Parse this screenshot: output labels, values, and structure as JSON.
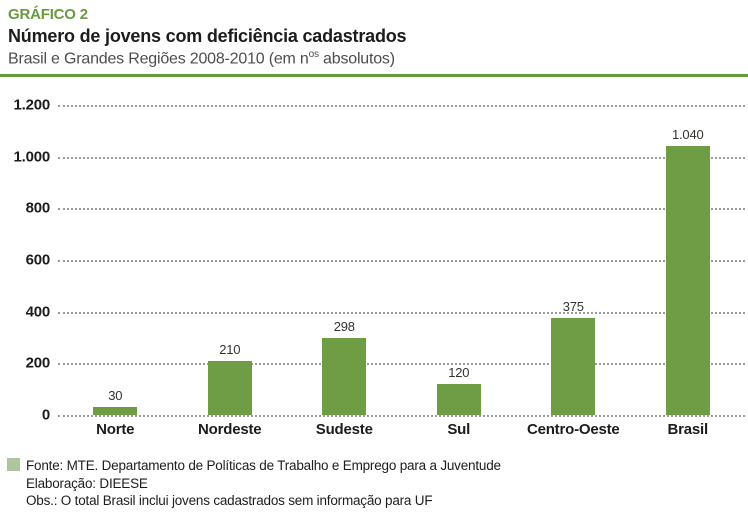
{
  "header": {
    "kicker": "GRÁFICO 2",
    "title": "Número de jovens com deficiência cadastrados",
    "subtitle_prefix": "Brasil e Grandes Regiões 2008-2010 (em n",
    "subtitle_sup": "os",
    "subtitle_suffix": " absolutos)"
  },
  "chart_data": {
    "type": "bar",
    "title": "Número de jovens com deficiência cadastrados",
    "subtitle": "Brasil e Grandes Regiões 2008-2010 (em nos absolutos)",
    "categories": [
      "Norte",
      "Nordeste",
      "Sudeste",
      "Sul",
      "Centro-Oeste",
      "Brasil"
    ],
    "values": [
      30,
      210,
      298,
      120,
      375,
      1040
    ],
    "value_labels": [
      "30",
      "210",
      "298",
      "120",
      "375",
      "1.040"
    ],
    "xlabel": "",
    "ylabel": "",
    "ylim": [
      0,
      1200
    ],
    "yticks": [
      1200,
      1000,
      800,
      600,
      400,
      200,
      0
    ],
    "ytick_labels": [
      "1.200",
      "1.000",
      "800",
      "600",
      "400",
      "200",
      "0"
    ],
    "grid": "horizontal-dotted",
    "legend_position": "none",
    "bar_color": "#6f9d46"
  },
  "footer": {
    "source": "Fonte: MTE. Departamento de Políticas de Trabalho e Emprego para a Juventude",
    "elaboration": "Elaboração: DIEESE",
    "note": "Obs.: O total Brasil inclui jovens cadastrados sem informação para UF"
  },
  "colors": {
    "accent_green": "#689a40",
    "bar_green": "#6f9d46",
    "legend_square_green": "#aec49c",
    "gridline_gray": "#9a9a9a"
  }
}
